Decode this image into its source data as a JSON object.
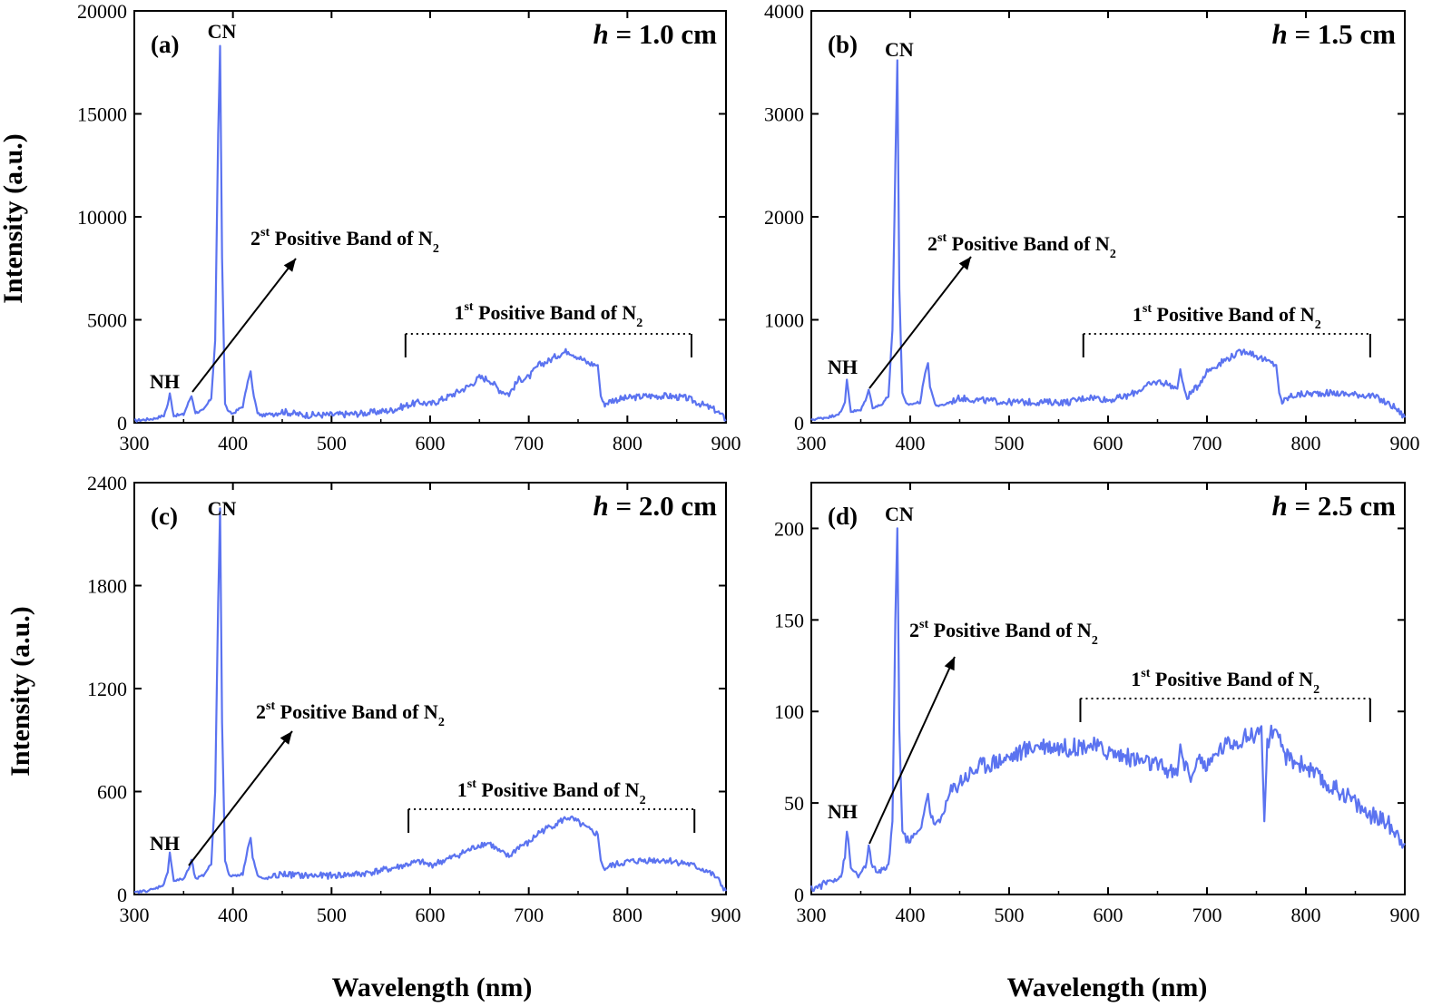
{
  "figure": {
    "xlabel": "Wavelength (nm)",
    "ylabel": "Intensity (a.u.)"
  },
  "colors": {
    "series": "#5b73f0"
  },
  "chart_data": [
    {
      "type": "line",
      "panel_label": "(a)",
      "h_value": "1.0",
      "h_unit": "cm",
      "xlim": [
        300,
        900
      ],
      "ylim": [
        0,
        20000
      ],
      "yticks": [
        0,
        5000,
        10000,
        15000,
        20000
      ],
      "xticks": [
        300,
        400,
        500,
        600,
        700,
        800,
        900
      ],
      "annotations": {
        "cn": "CN",
        "nh": "NH",
        "band2_ordinal": "2",
        "band2_sup": "st",
        "band2_text": "Positive Band of N",
        "band2_sub": "2",
        "band1_ordinal": "1",
        "band1_sup": "st",
        "band1_text": "Positive Band of N",
        "band1_sub": "2"
      },
      "band1_range": [
        575,
        865
      ],
      "x": [
        300,
        320,
        330,
        334,
        336,
        340,
        350,
        356,
        358,
        362,
        370,
        378,
        382,
        385,
        387,
        389,
        392,
        396,
        400,
        410,
        415,
        418,
        420,
        425,
        430,
        440,
        450,
        470,
        500,
        530,
        560,
        580,
        590,
        600,
        620,
        640,
        650,
        660,
        670,
        680,
        690,
        700,
        710,
        720,
        730,
        740,
        750,
        760,
        770,
        773,
        776,
        785,
        800,
        820,
        840,
        860,
        870,
        880,
        890,
        900
      ],
      "y": [
        100,
        200,
        350,
        900,
        1400,
        350,
        400,
        1100,
        1300,
        500,
        600,
        1200,
        4000,
        14000,
        18300,
        8000,
        900,
        500,
        450,
        800,
        2000,
        2500,
        1600,
        450,
        350,
        450,
        550,
        380,
        380,
        450,
        600,
        900,
        1000,
        900,
        1300,
        1800,
        2200,
        2100,
        1600,
        1400,
        2100,
        2200,
        2800,
        3000,
        3300,
        3500,
        3200,
        2900,
        2800,
        1300,
        900,
        1100,
        1200,
        1300,
        1300,
        1200,
        1000,
        800,
        600,
        150
      ]
    },
    {
      "type": "line",
      "panel_label": "(b)",
      "h_value": "1.5",
      "h_unit": "cm",
      "xlim": [
        300,
        900
      ],
      "ylim": [
        0,
        4000
      ],
      "yticks": [
        0,
        1000,
        2000,
        3000,
        4000
      ],
      "xticks": [
        300,
        400,
        500,
        600,
        700,
        800,
        900
      ],
      "annotations": {
        "cn": "CN",
        "nh": "NH",
        "band2_ordinal": "2",
        "band2_sup": "st",
        "band2_text": "Positive Band of N",
        "band2_sub": "2",
        "band1_ordinal": "1",
        "band1_sup": "st",
        "band1_text": "Positive Band of N",
        "band1_sub": "2"
      },
      "band1_range": [
        575,
        865
      ],
      "x": [
        300,
        320,
        330,
        334,
        336,
        340,
        350,
        356,
        358,
        362,
        370,
        378,
        382,
        385,
        387,
        389,
        392,
        396,
        400,
        410,
        415,
        418,
        420,
        425,
        430,
        440,
        450,
        470,
        500,
        530,
        560,
        580,
        590,
        600,
        620,
        640,
        650,
        660,
        670,
        673,
        676,
        680,
        690,
        700,
        710,
        720,
        730,
        740,
        750,
        760,
        770,
        773,
        776,
        785,
        800,
        820,
        840,
        860,
        870,
        880,
        890,
        900
      ],
      "y": [
        30,
        60,
        100,
        200,
        420,
        110,
        120,
        250,
        320,
        150,
        170,
        260,
        900,
        2500,
        3520,
        1300,
        280,
        180,
        180,
        200,
        480,
        580,
        360,
        180,
        160,
        200,
        240,
        220,
        200,
        200,
        200,
        250,
        240,
        220,
        260,
        360,
        400,
        380,
        330,
        520,
        350,
        250,
        350,
        500,
        560,
        620,
        670,
        700,
        650,
        600,
        560,
        290,
        200,
        260,
        280,
        290,
        280,
        270,
        250,
        200,
        150,
        50
      ]
    },
    {
      "type": "line",
      "panel_label": "(c)",
      "h_value": "2.0",
      "h_unit": "cm",
      "xlim": [
        300,
        900
      ],
      "ylim": [
        0,
        2400
      ],
      "yticks": [
        0,
        600,
        1200,
        1800,
        2400
      ],
      "xticks": [
        300,
        400,
        500,
        600,
        700,
        800,
        900
      ],
      "annotations": {
        "cn": "CN",
        "nh": "NH",
        "band2_ordinal": "2",
        "band2_sup": "st",
        "band2_text": "Positive Band of N",
        "band2_sub": "2",
        "band1_ordinal": "1",
        "band1_sup": "st",
        "band1_text": "Positive Band of N",
        "band1_sub": "2"
      },
      "band1_range": [
        578,
        868
      ],
      "x": [
        300,
        320,
        330,
        334,
        336,
        340,
        350,
        356,
        358,
        362,
        370,
        378,
        382,
        385,
        387,
        389,
        392,
        396,
        400,
        410,
        415,
        418,
        420,
        425,
        430,
        440,
        450,
        470,
        500,
        530,
        560,
        580,
        590,
        600,
        620,
        640,
        650,
        660,
        670,
        680,
        690,
        700,
        710,
        720,
        730,
        740,
        750,
        760,
        770,
        773,
        776,
        785,
        800,
        820,
        840,
        860,
        870,
        880,
        890,
        900
      ],
      "y": [
        10,
        30,
        60,
        130,
        250,
        80,
        90,
        160,
        200,
        90,
        110,
        180,
        600,
        1700,
        2250,
        1000,
        200,
        110,
        110,
        120,
        270,
        330,
        220,
        110,
        90,
        100,
        120,
        110,
        110,
        120,
        150,
        180,
        190,
        170,
        210,
        260,
        290,
        300,
        250,
        220,
        280,
        300,
        360,
        390,
        420,
        450,
        420,
        380,
        350,
        200,
        150,
        170,
        190,
        200,
        200,
        180,
        160,
        140,
        100,
        20
      ]
    },
    {
      "type": "line",
      "panel_label": "(d)",
      "h_value": "2.5",
      "h_unit": "cm",
      "xlim": [
        300,
        900
      ],
      "ylim": [
        0,
        225
      ],
      "yticks": [
        0,
        50,
        100,
        150,
        200
      ],
      "xticks": [
        300,
        400,
        500,
        600,
        700,
        800,
        900
      ],
      "annotations": {
        "cn": "CN",
        "nh": "NH",
        "band2_ordinal": "2",
        "band2_sup": "st",
        "band2_text": "Positive Band of N",
        "band2_sub": "2",
        "band1_ordinal": "1",
        "band1_sup": "st",
        "band1_text": "Positive Band of N",
        "band1_sub": "2"
      },
      "band1_range": [
        572,
        865
      ],
      "x": [
        300,
        310,
        320,
        330,
        334,
        336,
        340,
        350,
        356,
        358,
        362,
        370,
        378,
        382,
        385,
        387,
        389,
        392,
        396,
        400,
        410,
        415,
        418,
        420,
        425,
        430,
        440,
        450,
        470,
        500,
        530,
        560,
        580,
        600,
        620,
        640,
        660,
        670,
        673,
        676,
        680,
        686,
        690,
        700,
        710,
        720,
        730,
        740,
        750,
        755,
        758,
        761,
        765,
        770,
        775,
        780,
        800,
        820,
        840,
        860,
        880,
        890,
        900
      ],
      "y": [
        3,
        5,
        8,
        10,
        20,
        36,
        14,
        10,
        18,
        26,
        14,
        12,
        16,
        40,
        150,
        200,
        90,
        35,
        30,
        30,
        35,
        48,
        55,
        45,
        38,
        40,
        55,
        62,
        70,
        75,
        82,
        80,
        82,
        78,
        75,
        72,
        68,
        65,
        82,
        72,
        70,
        62,
        78,
        68,
        78,
        82,
        84,
        86,
        88,
        92,
        40,
        82,
        90,
        85,
        82,
        75,
        70,
        60,
        55,
        45,
        40,
        35,
        28
      ]
    }
  ]
}
